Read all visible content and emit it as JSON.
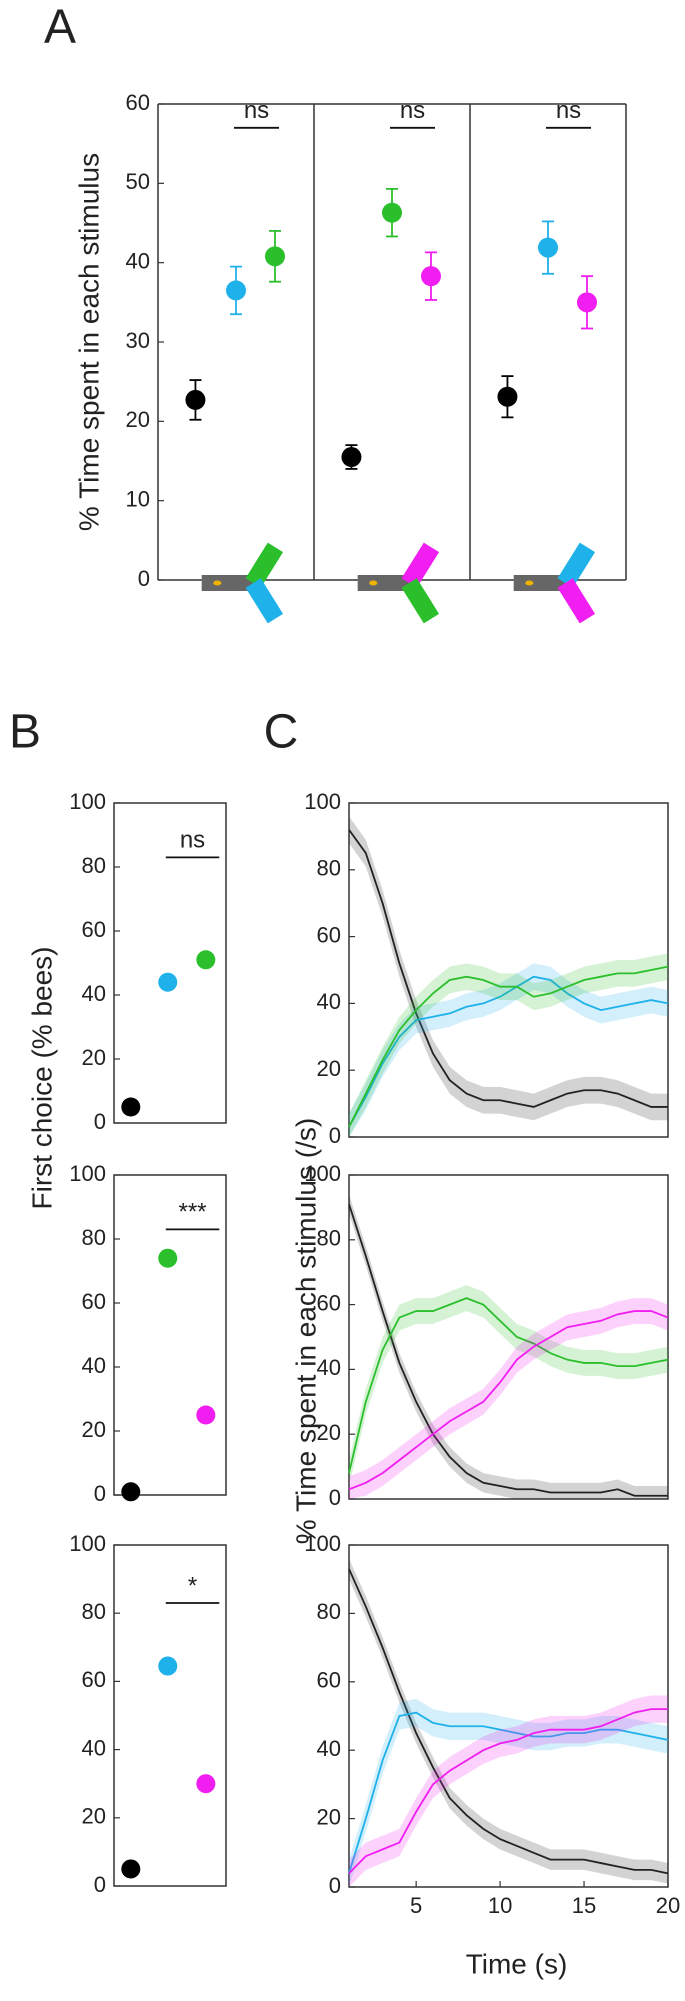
{
  "panel_labels": [
    "A",
    "B",
    "C"
  ],
  "chart_data": [
    {
      "type": "errorbar",
      "ylabel": "% Time spent in each stimulus",
      "ylim": [
        0,
        60
      ],
      "yticks": [
        0,
        10,
        20,
        30,
        40,
        50,
        60
      ],
      "values": [
        22.7,
        36.5,
        40.8
      ],
      "errors": [
        2.5,
        3.0,
        3.2
      ],
      "colors": [
        "#000000",
        "#1fb1ea",
        "#2cbf2c"
      ],
      "annotation": "ns"
    },
    {
      "type": "errorbar",
      "ylim": [
        0,
        60
      ],
      "values": [
        15.5,
        46.3,
        38.3
      ],
      "errors": [
        1.5,
        3.0,
        3.0
      ],
      "colors": [
        "#000000",
        "#2cbf2c",
        "#f01ef0"
      ],
      "annotation": "ns"
    },
    {
      "type": "errorbar",
      "ylim": [
        0,
        60
      ],
      "values": [
        23.1,
        41.9,
        35.0
      ],
      "errors": [
        2.6,
        3.3,
        3.3
      ],
      "colors": [
        "#000000",
        "#1fb1ea",
        "#f01ef0"
      ],
      "annotation": "ns"
    },
    {
      "type": "dot",
      "ylabel": "First choice (% bees)",
      "ylim": [
        0,
        100
      ],
      "yticks": [
        0,
        20,
        40,
        60,
        80,
        100
      ],
      "values": [
        5,
        44,
        51
      ],
      "colors": [
        "#000000",
        "#1fb1ea",
        "#2cbf2c"
      ],
      "annotation": "ns"
    },
    {
      "type": "dot",
      "ylim": [
        0,
        100
      ],
      "yticks": [
        0,
        20,
        40,
        60,
        80,
        100
      ],
      "values": [
        1,
        74,
        25
      ],
      "colors": [
        "#000000",
        "#2cbf2c",
        "#f01ef0"
      ],
      "annotation": "***"
    },
    {
      "type": "dot",
      "ylim": [
        0,
        100
      ],
      "yticks": [
        0,
        20,
        40,
        60,
        80,
        100
      ],
      "values": [
        5,
        64.5,
        30
      ],
      "colors": [
        "#000000",
        "#1fb1ea",
        "#f01ef0"
      ],
      "annotation": "*"
    },
    {
      "type": "line",
      "xlim": [
        1,
        20
      ],
      "ylim": [
        0,
        100
      ],
      "yticks": [
        0,
        20,
        40,
        60,
        80,
        100
      ],
      "x": [
        1,
        2,
        3,
        4,
        5,
        6,
        7,
        8,
        9,
        10,
        11,
        12,
        13,
        14,
        15,
        16,
        17,
        18,
        19,
        20
      ],
      "series": [
        {
          "color": "#222222",
          "error": 4,
          "values": [
            92,
            85,
            70,
            52,
            37,
            25,
            17,
            13,
            11,
            11,
            10,
            9,
            11,
            13,
            14,
            14,
            13,
            11,
            9,
            9
          ]
        },
        {
          "color": "#1fb1ea",
          "error": 4,
          "values": [
            3,
            12,
            22,
            30,
            35,
            36,
            37,
            39,
            40,
            42,
            45,
            48,
            47,
            43,
            40,
            38,
            39,
            40,
            41,
            40
          ]
        },
        {
          "color": "#2cbf2c",
          "error": 4,
          "values": [
            3,
            13,
            23,
            32,
            38,
            43,
            47,
            48,
            47,
            45,
            45,
            42,
            43,
            45,
            47,
            48,
            49,
            49,
            50,
            51
          ]
        }
      ]
    },
    {
      "type": "line",
      "xlim": [
        1,
        20
      ],
      "ylim": [
        0,
        100
      ],
      "yticks": [
        0,
        20,
        40,
        60,
        80,
        100
      ],
      "x": [
        1,
        2,
        3,
        4,
        5,
        6,
        7,
        8,
        9,
        10,
        11,
        12,
        13,
        14,
        15,
        16,
        17,
        18,
        19,
        20
      ],
      "series": [
        {
          "color": "#222222",
          "error": 3,
          "values": [
            91,
            75,
            58,
            42,
            30,
            20,
            13,
            8,
            5,
            4,
            3,
            3,
            2,
            2,
            2,
            2,
            3,
            1,
            1,
            1
          ]
        },
        {
          "color": "#2cbf2c",
          "error": 4,
          "values": [
            8,
            30,
            46,
            56,
            58,
            58,
            60,
            62,
            60,
            55,
            50,
            48,
            45,
            43,
            42,
            42,
            41,
            41,
            42,
            43
          ]
        },
        {
          "color": "#f01ef0",
          "error": 4,
          "values": [
            3,
            5,
            8,
            12,
            16,
            20,
            24,
            27,
            30,
            36,
            43,
            47,
            50,
            53,
            54,
            55,
            57,
            58,
            58,
            56
          ]
        }
      ]
    },
    {
      "type": "line",
      "xlim": [
        1,
        20
      ],
      "ylim": [
        0,
        100
      ],
      "yticks": [
        0,
        20,
        40,
        60,
        80,
        100
      ],
      "xticks": [
        5,
        10,
        15,
        20
      ],
      "xlabel": "Time (s)",
      "ylabel": "% Time spent in each stimulus (/s)",
      "x": [
        1,
        2,
        3,
        4,
        5,
        6,
        7,
        8,
        9,
        10,
        11,
        12,
        13,
        14,
        15,
        16,
        17,
        18,
        19,
        20
      ],
      "series": [
        {
          "color": "#222222",
          "error": 3,
          "values": [
            93,
            82,
            70,
            57,
            45,
            35,
            26,
            21,
            17,
            14,
            12,
            10,
            8,
            8,
            8,
            7,
            6,
            5,
            5,
            4
          ]
        },
        {
          "color": "#1fb1ea",
          "error": 4,
          "values": [
            4,
            20,
            37,
            50,
            51,
            48,
            47,
            47,
            47,
            46,
            45,
            44,
            44,
            45,
            45,
            46,
            46,
            45,
            44,
            43
          ]
        },
        {
          "color": "#f01ef0",
          "error": 4,
          "values": [
            4,
            9,
            11,
            13,
            22,
            30,
            34,
            37,
            40,
            42,
            43,
            45,
            46,
            46,
            46,
            47,
            49,
            51,
            52,
            52
          ]
        }
      ]
    }
  ]
}
